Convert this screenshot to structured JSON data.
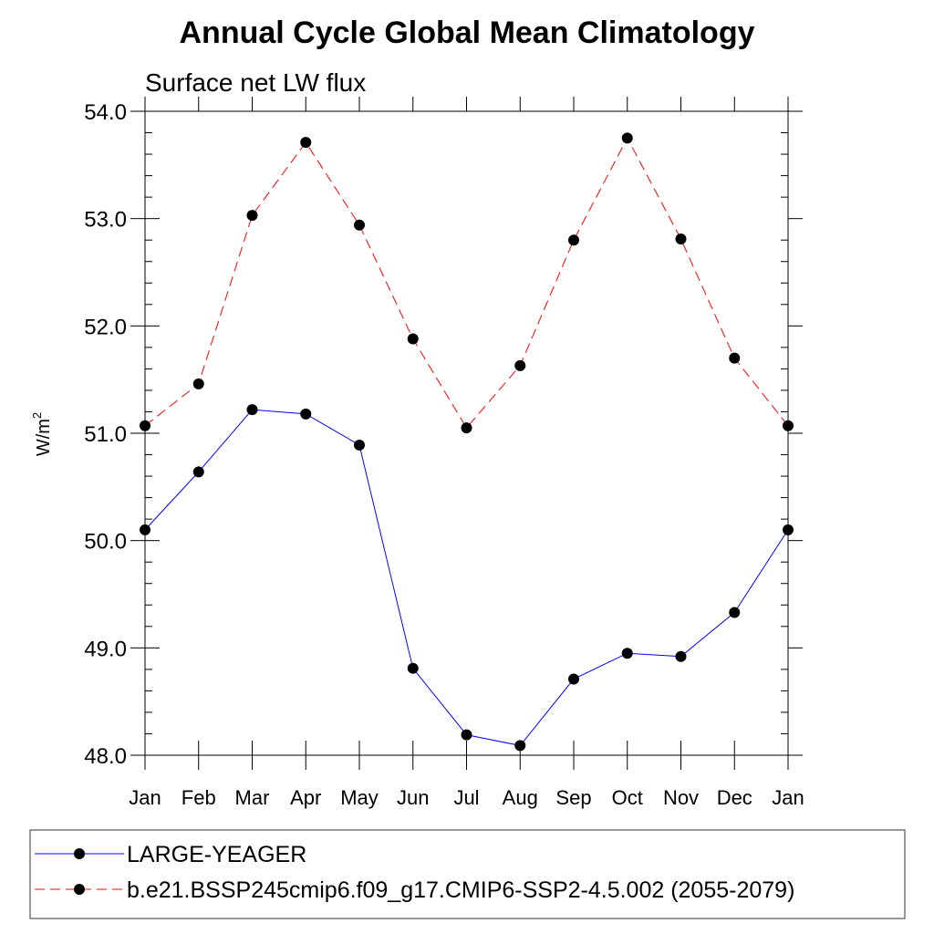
{
  "chart_data": {
    "type": "line",
    "title": "Annual Cycle Global Mean Climatology",
    "subtitle": "Surface net LW flux",
    "ylabel": "W/m",
    "ylabel_sup": "2",
    "ylim": [
      48.0,
      54.0
    ],
    "yticks": [
      "48.0",
      "49.0",
      "50.0",
      "51.0",
      "52.0",
      "53.0",
      "54.0"
    ],
    "categories": [
      "Jan",
      "Feb",
      "Mar",
      "Apr",
      "May",
      "Jun",
      "Jul",
      "Aug",
      "Sep",
      "Oct",
      "Nov",
      "Dec",
      "Jan"
    ],
    "series": [
      {
        "name": "LARGE-YEAGER",
        "color": "#0000ff",
        "dash": "solid",
        "values": [
          50.1,
          50.64,
          51.22,
          51.18,
          50.89,
          48.81,
          48.19,
          48.09,
          48.71,
          48.95,
          48.92,
          49.33,
          50.1
        ]
      },
      {
        "name": "b.e21.BSSP245cmip6.f09_g17.CMIP6-SSP2-4.5.002 (2055-2079)",
        "color": "#ff0000",
        "dash": "dashed",
        "values": [
          51.07,
          51.46,
          53.03,
          53.71,
          52.94,
          51.88,
          51.05,
          51.63,
          52.8,
          53.75,
          52.81,
          51.7,
          51.07
        ]
      }
    ],
    "grid": false,
    "legend_position": "bottom"
  }
}
